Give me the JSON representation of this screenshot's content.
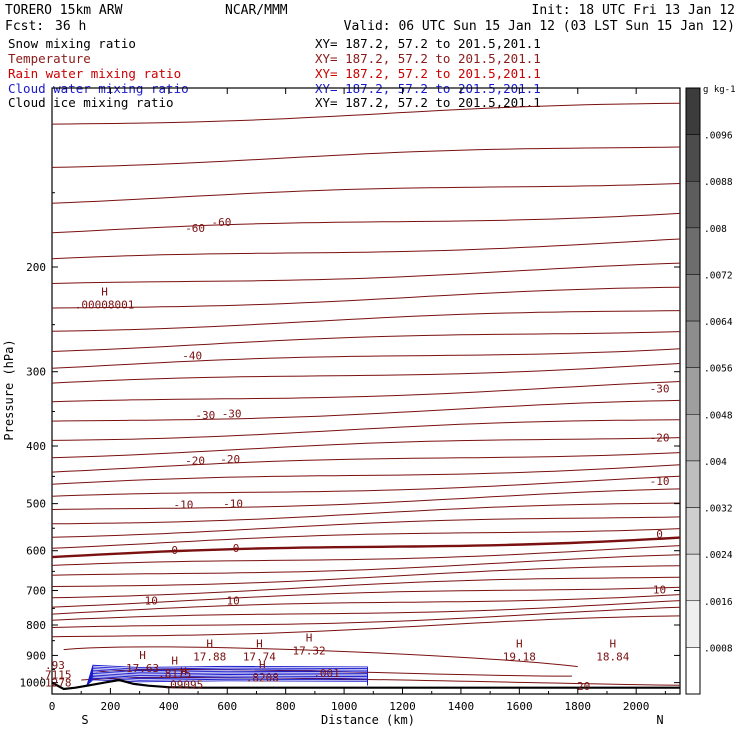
{
  "header": {
    "model": "TORERO  15km ARW",
    "org": "NCAR/MMM",
    "init": "Init: 18 UTC Fri 13 Jan 12",
    "fcst_label": "Fcst:",
    "fcst_value": "36 h",
    "valid": "Valid: 06 UTC Sun 15 Jan 12 (03 LST Sun 15 Jan 12)"
  },
  "fields": [
    {
      "name": "Snow mixing ratio",
      "xy": "XY= 187.2, 57.2 to 201.5,201.1",
      "color": "#000000"
    },
    {
      "name": "Temperature",
      "xy": "XY= 187.2, 57.2 to 201.5,201.1",
      "color": "#8b1a1a"
    },
    {
      "name": "Rain water mixing ratio",
      "xy": "XY= 187.2, 57.2 to 201.5,201.1",
      "color": "#cc0000"
    },
    {
      "name": "Cloud water mixing ratio",
      "xy": "XY= 187.2, 57.2 to 201.5,201.1",
      "color": "#1a1acc"
    },
    {
      "name": "Cloud ice mixing ratio",
      "xy": "XY= 187.2, 57.2 to 201.5,201.1",
      "color": "#000000"
    }
  ],
  "chart_data": {
    "type": "contour cross-section",
    "xlabel": "Distance (km)",
    "ylabel": "Pressure (hPa)",
    "xlim": [
      0,
      2150
    ],
    "ylim": [
      1045,
      100
    ],
    "x_ticks": [
      0,
      200,
      400,
      600,
      800,
      1000,
      1200,
      1400,
      1600,
      1800,
      2000
    ],
    "y_ticks": [
      200,
      300,
      400,
      500,
      600,
      700,
      800,
      900,
      1000
    ],
    "direction_left": "S",
    "direction_right": "N",
    "colorbar": {
      "units": "g kg-1",
      "labels": [
        ".0096",
        ".0088",
        ".008",
        ".0072",
        ".0064",
        ".0056",
        ".0048",
        ".004",
        ".0032",
        ".0024",
        ".0016",
        ".0008"
      ],
      "levels": [
        0.0096,
        0.0088,
        0.008,
        0.0072,
        0.0064,
        0.0056,
        0.0048,
        0.004,
        0.0032,
        0.0024,
        0.0016,
        0.0008
      ]
    },
    "temperature_contour_labels": [
      {
        "text": "-60",
        "x": 490,
        "p": 172
      },
      {
        "text": "-60",
        "x": 580,
        "p": 168
      },
      {
        "text": "-40",
        "x": 480,
        "p": 282
      },
      {
        "text": "-30",
        "x": 525,
        "p": 355
      },
      {
        "text": "-30",
        "x": 615,
        "p": 353
      },
      {
        "text": "-30",
        "x": 2080,
        "p": 320
      },
      {
        "text": "-20",
        "x": 490,
        "p": 423
      },
      {
        "text": "-20",
        "x": 610,
        "p": 421
      },
      {
        "text": "-20",
        "x": 2080,
        "p": 387
      },
      {
        "text": "-10",
        "x": 450,
        "p": 502
      },
      {
        "text": "-10",
        "x": 620,
        "p": 500
      },
      {
        "text": "-10",
        "x": 2080,
        "p": 458
      },
      {
        "text": "0",
        "x": 420,
        "p": 598
      },
      {
        "text": "0",
        "x": 630,
        "p": 594
      },
      {
        "text": "0",
        "x": 2080,
        "p": 562
      },
      {
        "text": "10",
        "x": 340,
        "p": 727
      },
      {
        "text": "10",
        "x": 620,
        "p": 727
      },
      {
        "text": "10",
        "x": 2080,
        "p": 697
      },
      {
        "text": "20",
        "x": 1820,
        "p": 1013
      }
    ],
    "highs": [
      {
        "label": "H",
        "value": ".00008001",
        "x": 180,
        "p": 235
      },
      {
        "label": "H",
        "value": "17.88",
        "x": 540,
        "p": 918
      },
      {
        "label": "H",
        "value": "17.74",
        "x": 710,
        "p": 918
      },
      {
        "label": "H",
        "value": "17.32",
        "x": 880,
        "p": 896
      },
      {
        "label": "H",
        "value": "19.18",
        "x": 1600,
        "p": 918
      },
      {
        "label": "H",
        "value": "18.84",
        "x": 1920,
        "p": 918
      },
      {
        "label": "H",
        "value": "17.63",
        "x": 310,
        "p": 960
      },
      {
        "label": "H",
        "value": ".8175",
        "x": 420,
        "p": 980
      },
      {
        "label": "H",
        "value": ".8208",
        "x": 720,
        "p": 995
      },
      {
        "label": "",
        "value": ".001",
        "x": 940,
        "p": 978
      },
      {
        "label": "H",
        "value": ".09095",
        "x": 450,
        "p": 1022
      },
      {
        "label": "",
        "value": ".93",
        "x": 10,
        "p": 948
      },
      {
        "label": "",
        "value": ".7115",
        "x": 10,
        "p": 985
      },
      {
        "label": "",
        "value": ".1278",
        "x": 10,
        "p": 1015
      }
    ]
  }
}
